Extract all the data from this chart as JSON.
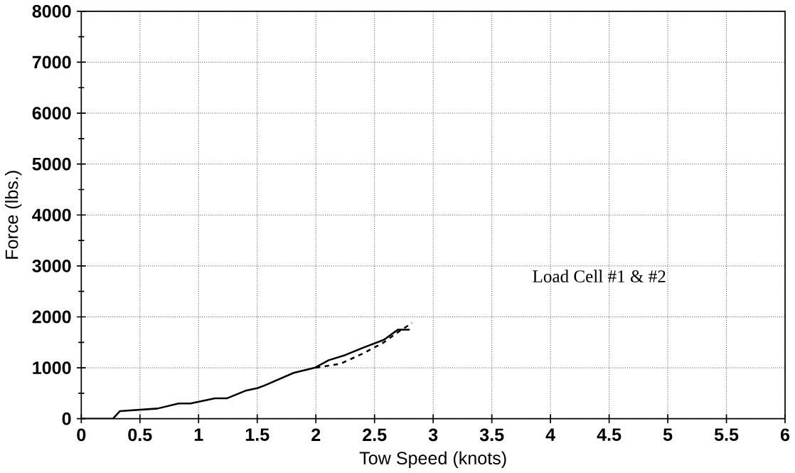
{
  "chart_data": {
    "type": "line",
    "xlabel": "Tow Speed (knots)",
    "ylabel": "Force (lbs.)",
    "annotations": [
      "Load Cell #1 & #2"
    ],
    "series": [
      {
        "color": "#000000",
        "line_style": "solid",
        "x": [
          0,
          0.27,
          0.33,
          0.65,
          0.83,
          0.93,
          1.14,
          1.24,
          1.4,
          1.5,
          1.56,
          1.81,
          1.99,
          2.11,
          2.25,
          2.41,
          2.58,
          2.7,
          2.8
        ],
        "values": [
          0,
          0,
          150,
          200,
          300,
          300,
          400,
          400,
          550,
          600,
          650,
          900,
          1000,
          1150,
          1250,
          1400,
          1550,
          1750,
          1750
        ]
      },
      {
        "color": "#000000",
        "line_style": "dashed",
        "x": [
          2.0,
          2.21,
          2.41,
          2.58,
          2.7,
          2.82
        ],
        "values": [
          1000,
          1080,
          1290,
          1500,
          1700,
          1880
        ]
      }
    ],
    "xlim": [
      0,
      6
    ],
    "ylim": [
      0,
      8000
    ],
    "xticks": [
      0,
      0.5,
      1,
      1.5,
      2,
      2.5,
      3,
      3.5,
      4,
      4.5,
      5,
      5.5,
      6
    ],
    "yticks": [
      0,
      {
        "value": 500,
        "label": null
      },
      1000,
      {
        "value": 1500,
        "label": null
      },
      2000,
      {
        "value": 2500,
        "label": null
      },
      3000,
      {
        "value": 3500,
        "label": null
      },
      4000,
      {
        "value": 4500,
        "label": null
      },
      5000,
      {
        "value": 5500,
        "label": null
      },
      6000,
      {
        "value": 6500,
        "label": null
      },
      7000,
      {
        "value": 7500,
        "label": null
      },
      8000
    ],
    "grid": true
  }
}
